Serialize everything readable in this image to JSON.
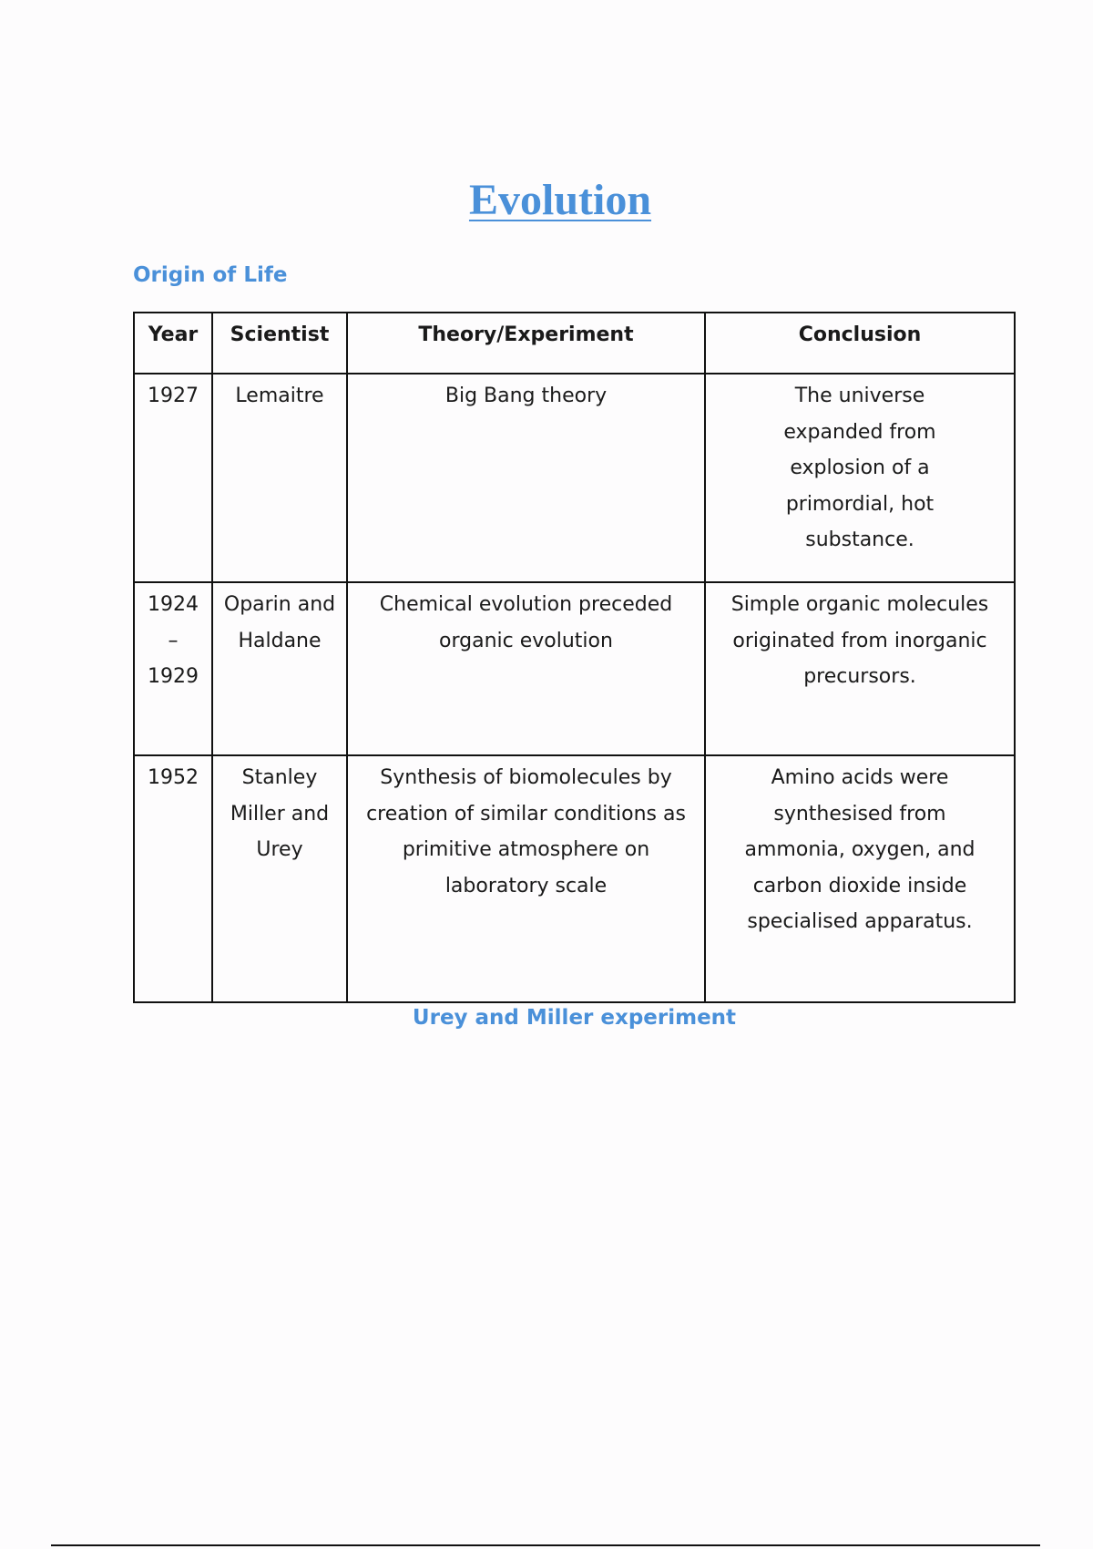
{
  "title": "Evolution",
  "subtitle": "Origin of Life",
  "table": {
    "headers": [
      "Year",
      "Scientist",
      "Theory/Experiment",
      "Conclusion"
    ],
    "rows": [
      {
        "year": "1927",
        "scientist": "Lemaitre",
        "theory": "Big Bang theory",
        "conclusion": "The universe expanded from explosion of a primordial, hot substance."
      },
      {
        "year": "1924 – 1929",
        "scientist": "Oparin and Haldane",
        "theory": "Chemical evolution preceded organic evolution",
        "conclusion": "Simple organic molecules originated from inorganic precursors."
      },
      {
        "year": "1952",
        "scientist": "Stanley Miller and Urey",
        "theory": "Synthesis of biomolecules by creation of similar conditions as primitive atmosphere on laboratory scale",
        "conclusion": "Amino acids were synthesised from ammonia, oxygen, and carbon dioxide inside specialised apparatus."
      }
    ]
  },
  "caption": "Urey and Miller experiment",
  "colors": {
    "heading": "#4a90d9",
    "text": "#1a1a1a"
  }
}
